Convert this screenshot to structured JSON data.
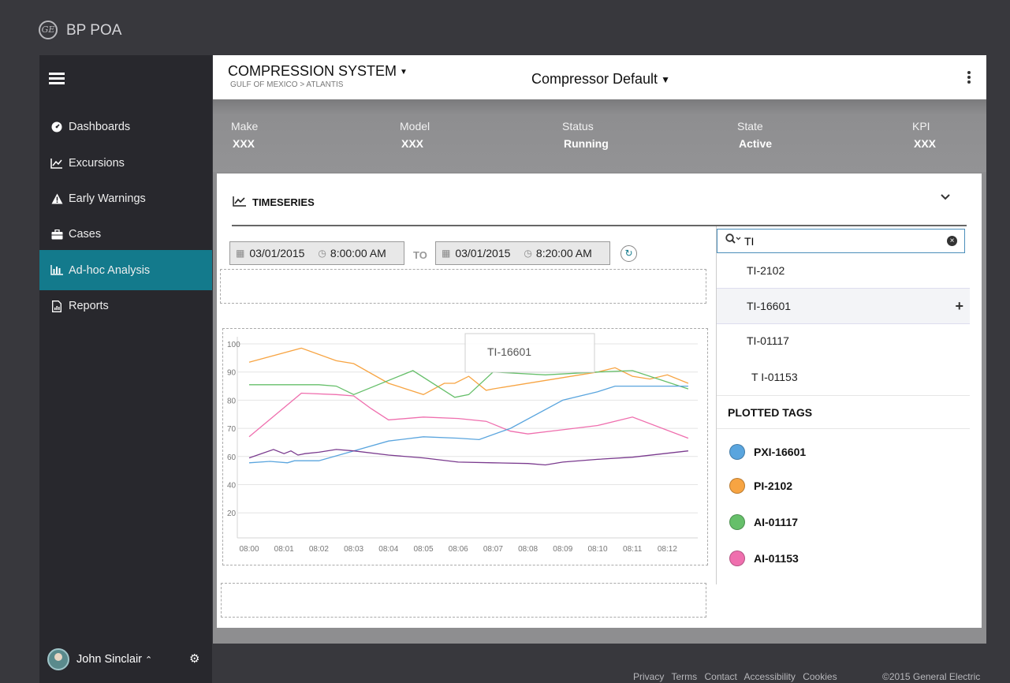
{
  "app": {
    "title": "BP POA",
    "logo_text": "GE"
  },
  "sidebar": {
    "items": [
      {
        "label": "Dashboards",
        "icon": "dashboard-icon"
      },
      {
        "label": "Excursions",
        "icon": "line-chart-icon"
      },
      {
        "label": "Early Warnings",
        "icon": "warning-icon"
      },
      {
        "label": "Cases",
        "icon": "briefcase-icon"
      },
      {
        "label": "Ad-hoc Analysis",
        "icon": "bar-chart-icon",
        "active": true
      },
      {
        "label": "Reports",
        "icon": "report-icon"
      }
    ],
    "user": {
      "name": "John Sinclair"
    }
  },
  "header": {
    "asset_title": "COMPRESSION SYSTEM",
    "breadcrumb": "GULF OF MEXICO > ATLANTIS",
    "view": "Compressor Default"
  },
  "info": [
    {
      "label": "Make",
      "value": "XXX"
    },
    {
      "label": "Model",
      "value": "XXX"
    },
    {
      "label": "Status",
      "value": "Running"
    },
    {
      "label": "State",
      "value": "Active"
    },
    {
      "label": "KPI",
      "value": "XXX"
    }
  ],
  "timeseries": {
    "title": "TIMESERIES",
    "from_date": "03/01/2015",
    "from_time": "8:00:00 AM",
    "to_label": "TO",
    "to_date": "03/01/2015",
    "to_time": "8:20:00 AM"
  },
  "search": {
    "value": "TI"
  },
  "results": [
    "TI-2102",
    "TI-16601",
    "TI-01117",
    "T I-01153"
  ],
  "plotted": {
    "heading": "PLOTTED TAGS",
    "tags": [
      {
        "name": "PXI-16601",
        "color": "#5aa5de"
      },
      {
        "name": "PI-2102",
        "color": "#f7a442"
      },
      {
        "name": "AI-01117",
        "color": "#66bf6a"
      },
      {
        "name": "AI-01153",
        "color": "#ef6fae"
      }
    ]
  },
  "chart_data": {
    "type": "line",
    "tooltip": "TI-16601",
    "x": [
      "08:00",
      "08:01",
      "08:02",
      "08:03",
      "08:04",
      "08:05",
      "08:06",
      "08:07",
      "08:08",
      "08:09",
      "08:10",
      "08:11",
      "08:12"
    ],
    "y_ticks": [
      100,
      90,
      80,
      70,
      60,
      40,
      20
    ],
    "grid": true,
    "series": [
      {
        "name": "PI-2102",
        "color": "#f7a442",
        "points": [
          [
            0,
            93.5
          ],
          [
            1.5,
            98.5
          ],
          [
            2.5,
            94
          ],
          [
            3,
            93
          ],
          [
            4,
            86
          ],
          [
            5,
            82
          ],
          [
            5.6,
            86
          ],
          [
            5.9,
            86
          ],
          [
            6.3,
            88.5
          ],
          [
            6.8,
            83.5
          ],
          [
            7,
            84
          ],
          [
            9,
            88
          ],
          [
            10,
            90
          ],
          [
            10.5,
            91.5
          ],
          [
            11,
            88.5
          ],
          [
            11.5,
            87.5
          ],
          [
            12,
            89
          ],
          [
            12.6,
            86
          ]
        ]
      },
      {
        "name": "AI-01117",
        "color": "#66bf6a",
        "points": [
          [
            0,
            85.5
          ],
          [
            2,
            85.5
          ],
          [
            2.5,
            85
          ],
          [
            3,
            82
          ],
          [
            4.7,
            90.5
          ],
          [
            5.9,
            81
          ],
          [
            6.3,
            82
          ],
          [
            7,
            90
          ],
          [
            8.5,
            89
          ],
          [
            10,
            90
          ],
          [
            11,
            90.5
          ],
          [
            12.6,
            84
          ]
        ]
      },
      {
        "name": "AI-01153",
        "color": "#ef6fae",
        "points": [
          [
            0,
            67
          ],
          [
            1.5,
            82.5
          ],
          [
            2.5,
            82
          ],
          [
            3,
            81.5
          ],
          [
            3.5,
            77
          ],
          [
            4,
            73
          ],
          [
            5,
            74
          ],
          [
            6,
            73.5
          ],
          [
            6.8,
            72.5
          ],
          [
            7.5,
            69
          ],
          [
            8,
            68
          ],
          [
            9,
            69.5
          ],
          [
            10,
            71
          ],
          [
            11,
            74
          ],
          [
            12.6,
            66.5
          ]
        ]
      },
      {
        "name": "PXI-16601",
        "color": "#5aa5de",
        "points": [
          [
            0,
            55.5
          ],
          [
            0.6,
            56.5
          ],
          [
            1.1,
            55.5
          ],
          [
            1.3,
            57
          ],
          [
            2,
            57
          ],
          [
            3,
            62
          ],
          [
            4,
            65.5
          ],
          [
            5,
            67
          ],
          [
            6,
            66.5
          ],
          [
            6.6,
            66
          ],
          [
            7.5,
            70
          ],
          [
            9,
            80
          ],
          [
            10,
            83
          ],
          [
            10.5,
            85
          ],
          [
            11.5,
            85
          ],
          [
            12.6,
            85
          ]
        ]
      },
      {
        "name": "",
        "color": "#7a3a8e",
        "points": [
          [
            0,
            59
          ],
          [
            0.7,
            62.5
          ],
          [
            1,
            61
          ],
          [
            1.2,
            62
          ],
          [
            1.4,
            60.5
          ],
          [
            1.6,
            61
          ],
          [
            2,
            61.5
          ],
          [
            2.5,
            62.5
          ],
          [
            3,
            62
          ],
          [
            4,
            60.5
          ],
          [
            5,
            59
          ],
          [
            6,
            56
          ],
          [
            7,
            55.5
          ],
          [
            8,
            55
          ],
          [
            8.5,
            54
          ],
          [
            9,
            56
          ],
          [
            10,
            58
          ],
          [
            11,
            59.5
          ],
          [
            12.6,
            62
          ]
        ]
      }
    ]
  }
}
